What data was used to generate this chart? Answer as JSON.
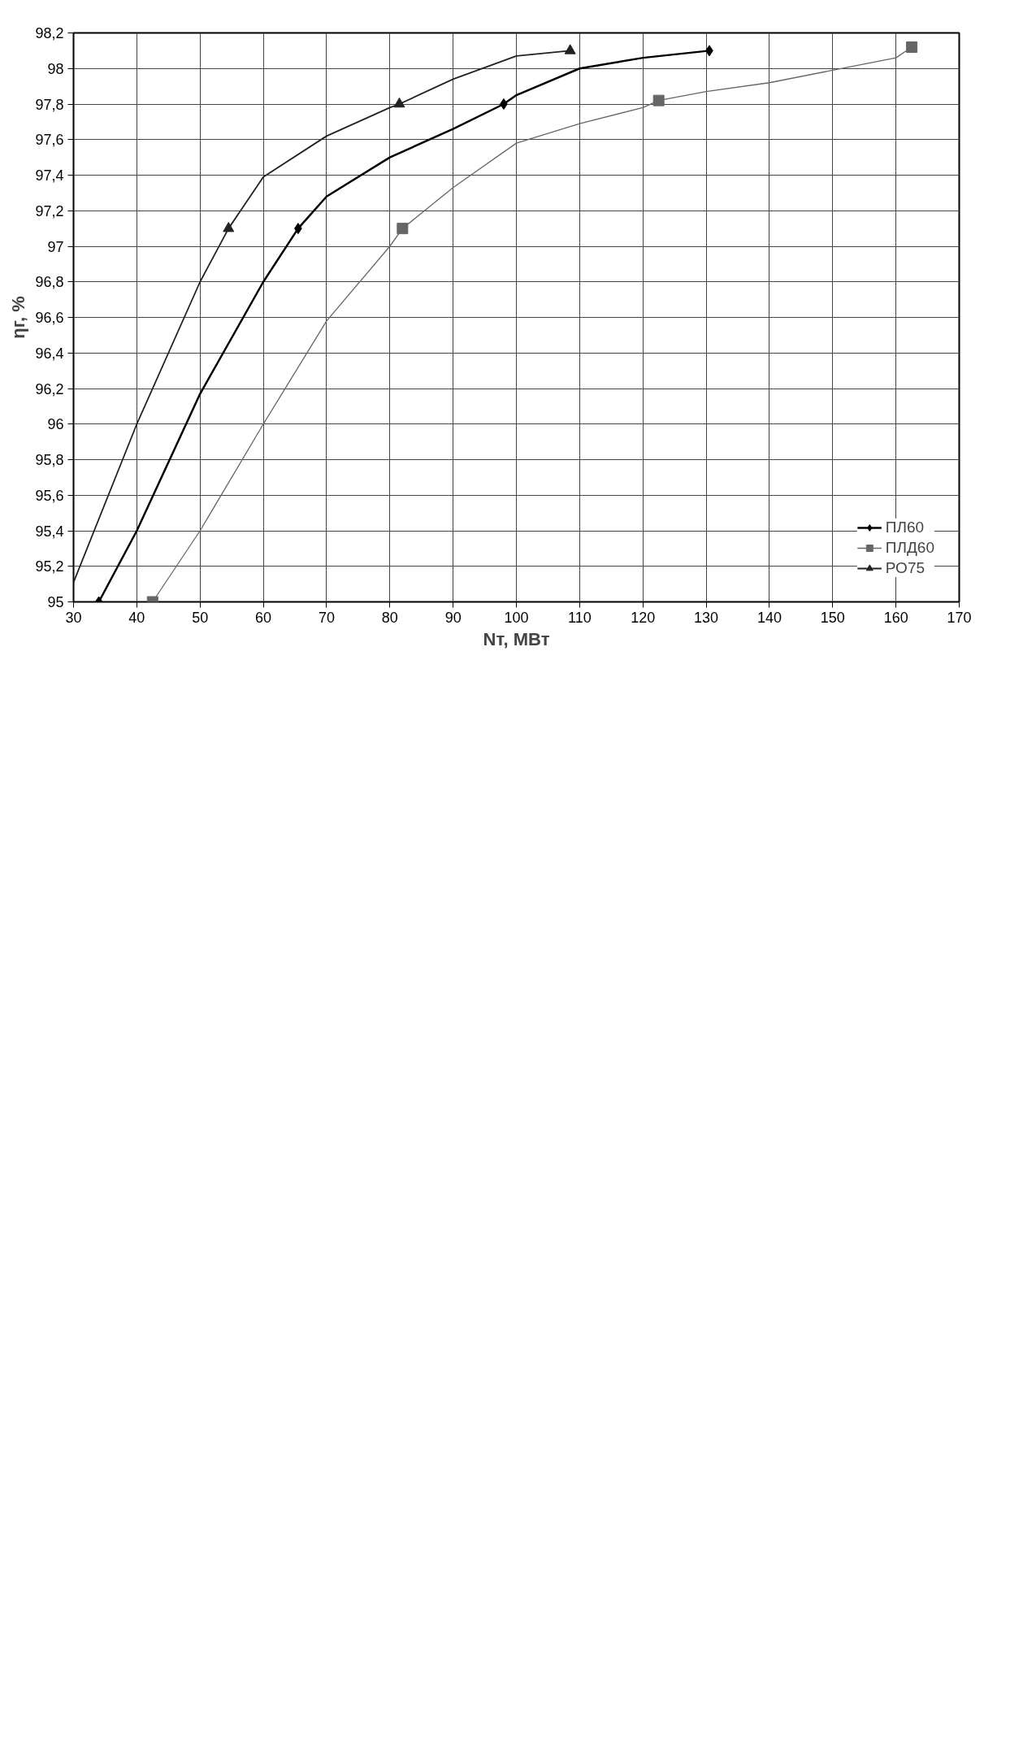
{
  "chart_data": {
    "type": "line",
    "xlabel": "Nт, МВт",
    "ylabel": "ηг, %",
    "xlim": [
      30,
      170
    ],
    "xticks": [
      30,
      40,
      50,
      60,
      70,
      80,
      90,
      100,
      110,
      120,
      130,
      140,
      150,
      160,
      170
    ],
    "ylim": [
      95,
      98.2
    ],
    "yticks": [
      95,
      {
        "value": 95.2,
        "label": "95,2"
      },
      {
        "value": 95.4,
        "label": "95,4"
      },
      {
        "value": 95.6,
        "label": "95,6"
      },
      {
        "value": 95.8,
        "label": "95,8"
      },
      96,
      {
        "value": 96.2,
        "label": "96,2"
      },
      {
        "value": 96.4,
        "label": "96,4"
      },
      {
        "value": 96.6,
        "label": "96,6"
      },
      {
        "value": 96.8,
        "label": "96,8"
      },
      97,
      {
        "value": 97.2,
        "label": "97,2"
      },
      {
        "value": 97.4,
        "label": "97,4"
      },
      {
        "value": 97.6,
        "label": "97,6"
      },
      {
        "value": 97.8,
        "label": "97,8"
      },
      98,
      {
        "value": 98.2,
        "label": "98,2"
      }
    ],
    "grid": true,
    "legend": "bottom right",
    "line_style": "solid",
    "series": [
      {
        "name": "ПЛ60",
        "type": "scatter",
        "color": "#000000",
        "marker": "diamond",
        "x": [
          34,
          65.5,
          98,
          130.5
        ],
        "values": [
          95.0,
          97.1,
          97.8,
          98.1
        ]
      },
      {
        "color": "#000000",
        "marker": "none",
        "x": [
          34,
          40,
          50,
          60,
          65.5,
          70,
          80,
          90,
          98,
          100,
          110,
          120,
          130.5
        ],
        "values": [
          95.0,
          95.4,
          96.17,
          96.8,
          97.1,
          97.28,
          97.5,
          97.66,
          97.8,
          97.85,
          98.0,
          98.06,
          98.1
        ]
      },
      {
        "name": "ПЛД60",
        "type": "scatter",
        "color": "#666666",
        "marker": "square",
        "x": [
          42.5,
          82,
          122.5,
          162.5
        ],
        "values": [
          95.0,
          97.1,
          97.82,
          98.12
        ]
      },
      {
        "color": "#666666",
        "marker": "none",
        "x": [
          42.5,
          50,
          60,
          70,
          80,
          82,
          90,
          100,
          110,
          120,
          122.5,
          130,
          140,
          150,
          160,
          162.5
        ],
        "values": [
          95.0,
          95.4,
          96.0,
          96.58,
          97.0,
          97.1,
          97.33,
          97.58,
          97.69,
          97.78,
          97.82,
          97.87,
          97.92,
          97.99,
          98.06,
          98.12
        ]
      },
      {
        "name": "РО75",
        "type": "scatter",
        "color": "#222222",
        "marker": "triangle",
        "x": [
          54.5,
          81.5,
          108.5
        ],
        "values": [
          97.1,
          97.8,
          98.1
        ]
      },
      {
        "color": "#222222",
        "marker": "none",
        "x": [
          30,
          40,
          50,
          54.5,
          60,
          70,
          80,
          81.5,
          90,
          100,
          108.5
        ],
        "values": [
          95.11,
          96.0,
          96.8,
          97.1,
          97.39,
          97.62,
          97.78,
          97.8,
          97.94,
          98.07,
          98.1
        ]
      }
    ]
  }
}
